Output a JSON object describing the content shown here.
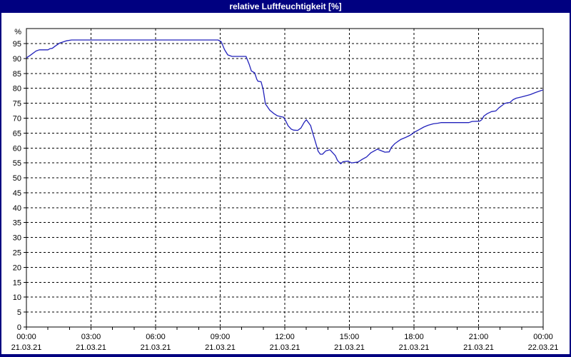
{
  "window": {
    "title": "relative Luftfeuchtigkeit [%]"
  },
  "colors": {
    "titlebar_bg": "#000080",
    "titlebar_text": "#ffffff",
    "window_border": "#000080",
    "background": "#ffffff",
    "grid_line": "#000000",
    "axis_line": "#000000",
    "tick_label": "#000000",
    "series_line": "#2222bb"
  },
  "chart_data": {
    "type": "line",
    "title": "relative Luftfeuchtigkeit [%]",
    "y_unit_label": "%",
    "ylim": [
      0,
      100
    ],
    "y_ticks": [
      0,
      5,
      10,
      15,
      20,
      25,
      30,
      35,
      40,
      45,
      50,
      55,
      60,
      65,
      70,
      75,
      80,
      85,
      90,
      95
    ],
    "x_range_hours": [
      0,
      24
    ],
    "x_minor_tick_hours": 1,
    "x_major_ticks": [
      {
        "hour": 0,
        "time": "00:00",
        "date": "21.03.21"
      },
      {
        "hour": 3,
        "time": "03:00",
        "date": "21.03.21"
      },
      {
        "hour": 6,
        "time": "06:00",
        "date": "21.03.21"
      },
      {
        "hour": 9,
        "time": "09:00",
        "date": "21.03.21"
      },
      {
        "hour": 12,
        "time": "12:00",
        "date": "21.03.21"
      },
      {
        "hour": 15,
        "time": "15:00",
        "date": "21.03.21"
      },
      {
        "hour": 18,
        "time": "18:00",
        "date": "21.03.21"
      },
      {
        "hour": 21,
        "time": "21:00",
        "date": "21.03.21"
      },
      {
        "hour": 24,
        "time": "00:00",
        "date": "22.03.21"
      }
    ],
    "grid": {
      "style": "dashed",
      "vertical_at_hours": [
        3,
        6,
        9,
        12,
        15,
        18,
        21
      ],
      "horizontal_at_ticks_above_zero": true
    },
    "legend": "none",
    "series": [
      {
        "name": "relative Luftfeuchtigkeit",
        "color": "#2222bb",
        "points": [
          [
            0.0,
            90.2
          ],
          [
            0.17,
            91.0
          ],
          [
            0.45,
            92.5
          ],
          [
            0.6,
            92.9
          ],
          [
            1.0,
            92.9
          ],
          [
            1.1,
            93.3
          ],
          [
            1.2,
            93.4
          ],
          [
            1.35,
            94.2
          ],
          [
            1.55,
            95.2
          ],
          [
            1.85,
            95.9
          ],
          [
            2.1,
            96.2
          ],
          [
            8.9,
            96.2
          ],
          [
            9.05,
            95.6
          ],
          [
            9.2,
            93.0
          ],
          [
            9.35,
            91.2
          ],
          [
            9.55,
            90.7
          ],
          [
            10.2,
            90.7
          ],
          [
            10.35,
            88.0
          ],
          [
            10.45,
            85.8
          ],
          [
            10.6,
            85.2
          ],
          [
            10.7,
            83.0
          ],
          [
            10.75,
            82.4
          ],
          [
            10.9,
            82.2
          ],
          [
            11.0,
            79.5
          ],
          [
            11.05,
            77.2
          ],
          [
            11.1,
            74.8
          ],
          [
            11.3,
            72.7
          ],
          [
            11.5,
            71.5
          ],
          [
            11.65,
            70.8
          ],
          [
            11.95,
            70.3
          ],
          [
            12.05,
            69.0
          ],
          [
            12.15,
            67.5
          ],
          [
            12.3,
            66.3
          ],
          [
            12.4,
            66.0
          ],
          [
            12.6,
            65.9
          ],
          [
            12.75,
            66.7
          ],
          [
            12.9,
            68.6
          ],
          [
            13.0,
            69.5
          ],
          [
            13.2,
            67.5
          ],
          [
            13.3,
            65.0
          ],
          [
            13.4,
            62.6
          ],
          [
            13.55,
            58.9
          ],
          [
            13.65,
            57.9
          ],
          [
            13.75,
            57.9
          ],
          [
            13.9,
            59.0
          ],
          [
            14.1,
            59.4
          ],
          [
            14.25,
            58.2
          ],
          [
            14.35,
            57.4
          ],
          [
            14.45,
            55.8
          ],
          [
            14.6,
            54.7
          ],
          [
            14.7,
            55.4
          ],
          [
            14.95,
            55.6
          ],
          [
            15.1,
            55.0
          ],
          [
            15.4,
            55.3
          ],
          [
            15.6,
            56.2
          ],
          [
            15.8,
            57.0
          ],
          [
            16.0,
            58.4
          ],
          [
            16.3,
            59.6
          ],
          [
            16.5,
            59.0
          ],
          [
            16.65,
            58.6
          ],
          [
            16.85,
            58.7
          ],
          [
            16.95,
            60.2
          ],
          [
            17.1,
            61.4
          ],
          [
            17.25,
            62.2
          ],
          [
            17.4,
            62.9
          ],
          [
            17.6,
            63.5
          ],
          [
            17.75,
            64.0
          ],
          [
            17.9,
            64.6
          ],
          [
            18.0,
            65.2
          ],
          [
            18.25,
            66.2
          ],
          [
            18.45,
            67.0
          ],
          [
            18.65,
            67.6
          ],
          [
            18.9,
            68.1
          ],
          [
            19.1,
            68.3
          ],
          [
            19.25,
            68.5
          ],
          [
            20.55,
            68.5
          ],
          [
            20.7,
            68.9
          ],
          [
            21.05,
            69.0
          ],
          [
            21.15,
            69.5
          ],
          [
            21.25,
            70.7
          ],
          [
            21.4,
            71.5
          ],
          [
            21.6,
            72.2
          ],
          [
            21.8,
            72.4
          ],
          [
            21.95,
            73.5
          ],
          [
            22.1,
            74.3
          ],
          [
            22.2,
            74.9
          ],
          [
            22.3,
            75.1
          ],
          [
            22.45,
            75.2
          ],
          [
            22.6,
            76.2
          ],
          [
            22.75,
            76.7
          ],
          [
            23.0,
            77.1
          ],
          [
            23.2,
            77.5
          ],
          [
            23.4,
            77.9
          ],
          [
            23.65,
            78.6
          ],
          [
            23.85,
            79.1
          ],
          [
            24.0,
            79.5
          ]
        ]
      }
    ]
  }
}
